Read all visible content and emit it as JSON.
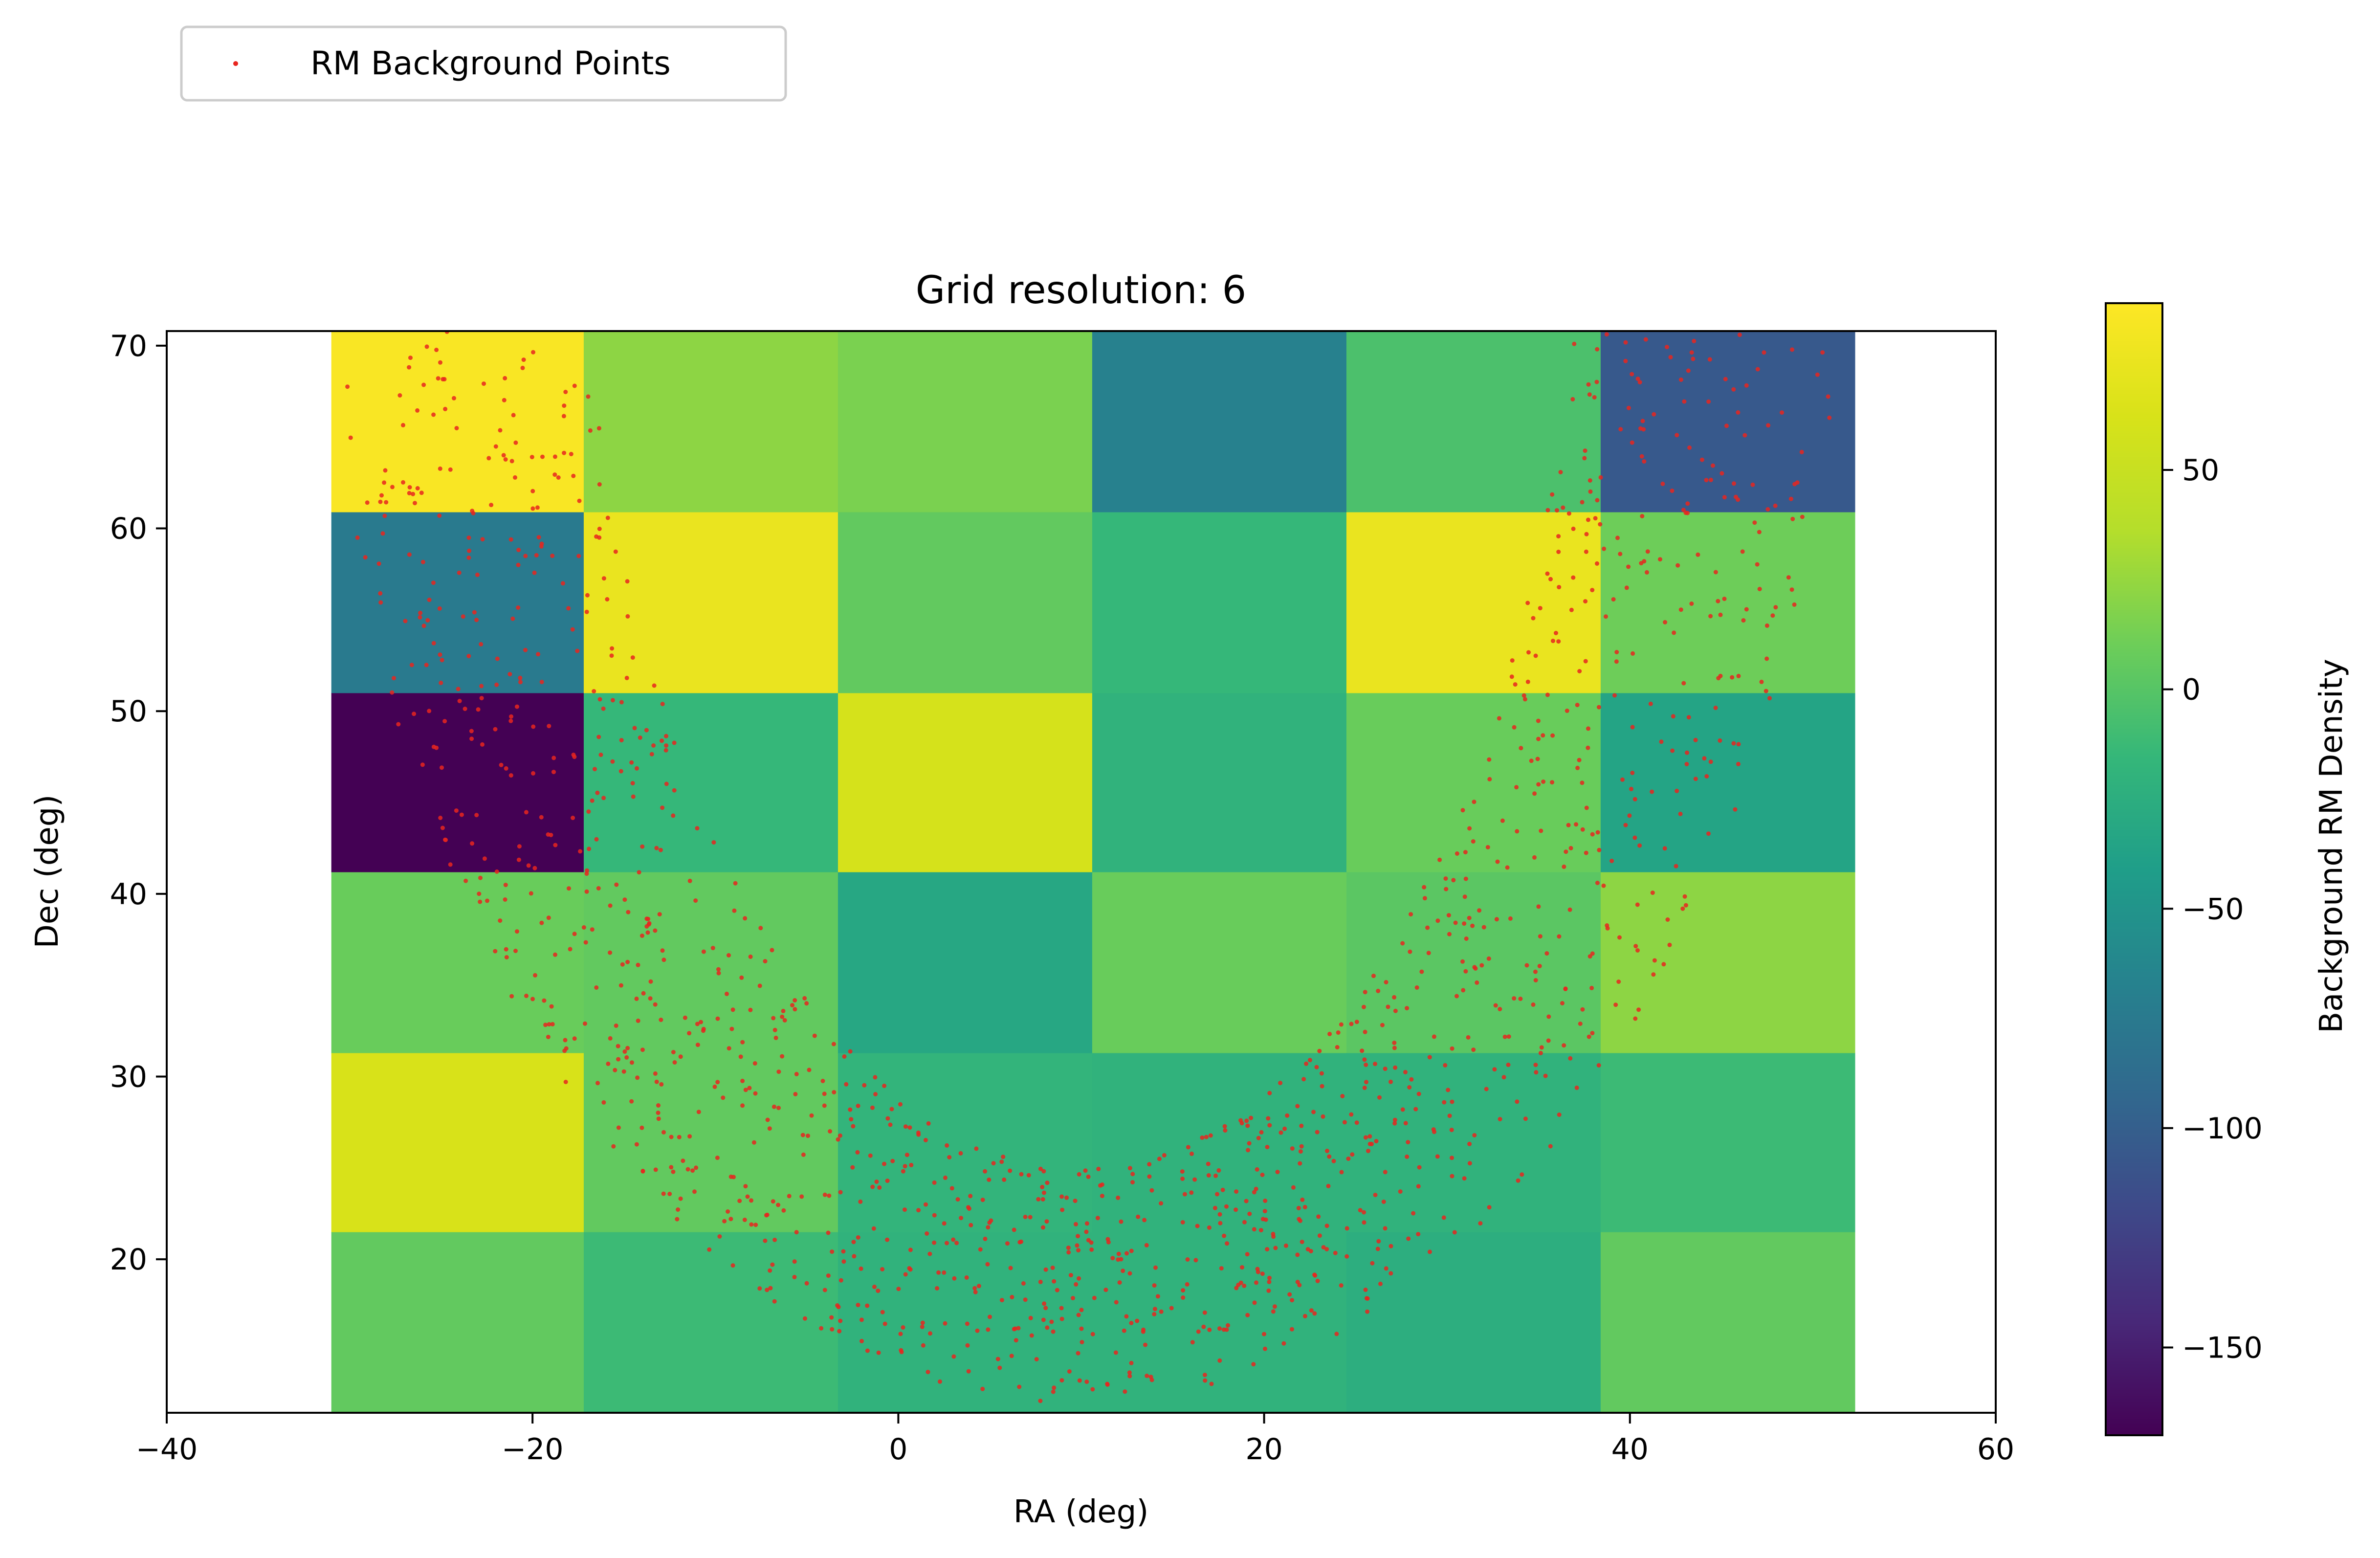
{
  "chart_data": {
    "type": "heatmap",
    "title": "Grid resolution: 6",
    "xlabel": "RA (deg)",
    "ylabel": "Dec (deg)",
    "xlim": [
      -40,
      60
    ],
    "ylim": [
      11.6,
      70.8
    ],
    "x_ticks": [
      -40,
      -20,
      0,
      20,
      40,
      60
    ],
    "x_tick_labels": [
      "−40",
      "−20",
      "0",
      "20",
      "40",
      "60"
    ],
    "y_ticks": [
      20,
      30,
      40,
      50,
      60,
      70
    ],
    "y_tick_labels": [
      "20",
      "30",
      "40",
      "50",
      "60",
      "70"
    ],
    "grid": false,
    "grid_x_edges": [
      -31.0,
      -17.2,
      -3.3,
      10.6,
      24.5,
      38.4,
      52.3
    ],
    "grid_y_edges": [
      11.6,
      21.5,
      31.3,
      41.2,
      51.0,
      60.9,
      70.8
    ],
    "cell_values": [
      [
        5,
        -12,
        -20,
        -20,
        -25,
        5
      ],
      [
        62,
        5,
        -18,
        -20,
        -20,
        -12
      ],
      [
        8,
        5,
        -32,
        8,
        2,
        22
      ],
      [
        -170,
        -15,
        60,
        -20,
        8,
        -35
      ],
      [
        -75,
        75,
        5,
        -15,
        75,
        10
      ],
      [
        85,
        22,
        15,
        -68,
        -5,
        -105
      ]
    ],
    "colormap": "viridis",
    "colorbar": {
      "label": "Background RM Density",
      "range": [
        -170,
        88
      ],
      "ticks": [
        50,
        0,
        -50,
        -100,
        -150
      ],
      "tick_labels": [
        "50",
        "0",
        "−50",
        "−100",
        "−150"
      ]
    },
    "scatter": {
      "name": "RM Background Points",
      "color": "#e8261f",
      "description_shape": "ring",
      "center": [
        10,
        80
      ],
      "outer_radius": [
        42,
        68
      ],
      "inner_radius": [
        27,
        55
      ],
      "count": 1500
    },
    "legend_position": "top-left"
  }
}
